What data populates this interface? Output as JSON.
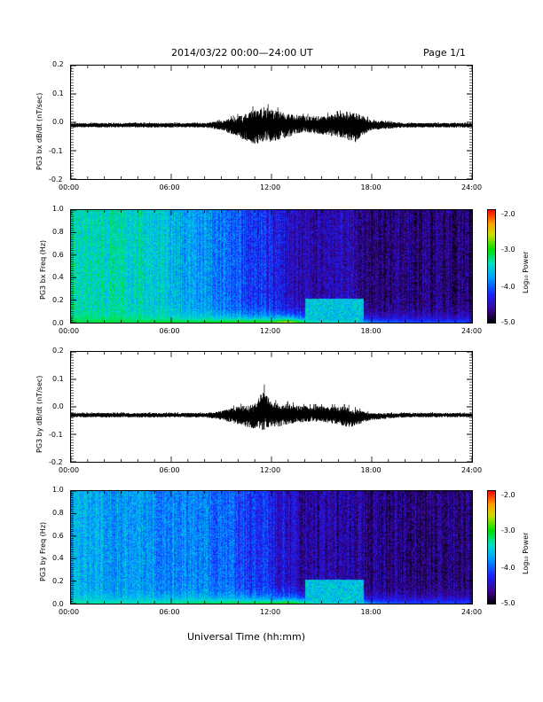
{
  "header": {
    "title": "2014/03/22   00:00—24:00 UT",
    "page": "Page 1/1"
  },
  "xaxis_title": "Universal Time (hh:mm)",
  "colorbar": {
    "label": "Log₁₀ Power",
    "ticks": [
      "-2.0",
      "-3.0",
      "-4.0",
      "-5.0"
    ]
  },
  "chart_data": [
    {
      "type": "line",
      "ylabel": "PG3 bx dB/dt (nT/sec)",
      "xlim": [
        "00:00",
        "24:00"
      ],
      "ylim": [
        -0.2,
        0.2
      ],
      "xticks": [
        "00:00",
        "06:00",
        "12:00",
        "18:00",
        "24:00"
      ],
      "yticks": [
        "0.2",
        "0.1",
        "0.0",
        "-0.1",
        "-0.2"
      ],
      "series": [
        {
          "x": [
            0,
            2,
            4,
            6,
            8,
            9,
            10,
            11,
            11.5,
            12,
            12.5,
            13,
            14,
            15,
            16,
            16.5,
            17,
            17.5,
            18,
            20,
            22,
            24
          ],
          "y_min": [
            -0.02,
            -0.02,
            -0.02,
            -0.02,
            -0.02,
            -0.03,
            -0.06,
            -0.09,
            -0.08,
            -0.08,
            -0.07,
            -0.06,
            -0.04,
            -0.05,
            -0.06,
            -0.07,
            -0.08,
            -0.05,
            -0.03,
            -0.02,
            -0.02,
            -0.02
          ],
          "y_max": [
            0.0,
            0.0,
            0.0,
            0.0,
            0.0,
            0.01,
            0.03,
            0.06,
            0.07,
            0.06,
            0.05,
            0.04,
            0.03,
            0.03,
            0.04,
            0.05,
            0.05,
            0.03,
            0.01,
            0.0,
            0.0,
            0.0
          ]
        }
      ]
    },
    {
      "type": "heatmap",
      "ylabel": "PG3 bx Freq (Hz)",
      "xlim": [
        "00:00",
        "24:00"
      ],
      "ylim": [
        0.0,
        1.0
      ],
      "zlim": [
        -5.0,
        -2.0
      ],
      "xticks": [
        "00:00",
        "06:00",
        "12:00",
        "18:00",
        "24:00"
      ],
      "yticks": [
        "1.0",
        "0.8",
        "0.6",
        "0.4",
        "0.2",
        "0.0"
      ],
      "hours": [
        0,
        4,
        8,
        10,
        12,
        13,
        14,
        15,
        16,
        17,
        18,
        20,
        24
      ],
      "background_log_power": [
        -3.4,
        -3.5,
        -3.8,
        -4.1,
        -4.3,
        -4.5,
        -4.6,
        -4.6,
        -4.5,
        -4.6,
        -4.7,
        -4.7,
        -4.7
      ],
      "low_freq_log_power": [
        -3.1,
        -3.1,
        -3.0,
        -2.8,
        -2.7,
        -2.3,
        -3.0,
        -3.3,
        -3.2,
        -3.4,
        -3.8,
        -4.0,
        -4.0
      ]
    },
    {
      "type": "line",
      "ylabel": "PG3 by dB/dt (nT/sec)",
      "xlim": [
        "00:00",
        "24:00"
      ],
      "ylim": [
        -0.2,
        0.2
      ],
      "xticks": [
        "00:00",
        "06:00",
        "12:00",
        "18:00",
        "24:00"
      ],
      "yticks": [
        "0.2",
        "0.1",
        "0.0",
        "-0.1",
        "-0.2"
      ],
      "series": [
        {
          "x": [
            0,
            2,
            4,
            6,
            8,
            9,
            10,
            11,
            11.5,
            12,
            12.5,
            13,
            14,
            15,
            16,
            16.5,
            17,
            17.5,
            18,
            20,
            22,
            24
          ],
          "y_min": [
            -0.04,
            -0.04,
            -0.04,
            -0.04,
            -0.04,
            -0.05,
            -0.07,
            -0.09,
            -0.1,
            -0.08,
            -0.08,
            -0.07,
            -0.06,
            -0.06,
            -0.07,
            -0.08,
            -0.08,
            -0.06,
            -0.05,
            -0.04,
            -0.04,
            -0.04
          ],
          "y_max": [
            -0.02,
            -0.02,
            -0.02,
            -0.02,
            -0.02,
            -0.01,
            0.01,
            0.02,
            0.09,
            0.03,
            0.02,
            0.02,
            0.01,
            0.01,
            0.01,
            0.01,
            0.0,
            -0.01,
            -0.02,
            -0.02,
            -0.02,
            -0.02
          ]
        }
      ]
    },
    {
      "type": "heatmap",
      "ylabel": "PG3 by Freq (Hz)",
      "xlim": [
        "00:00",
        "24:00"
      ],
      "ylim": [
        0.0,
        1.0
      ],
      "zlim": [
        -5.0,
        -2.0
      ],
      "xticks": [
        "00:00",
        "06:00",
        "12:00",
        "18:00",
        "24:00"
      ],
      "yticks": [
        "1.0",
        "0.8",
        "0.6",
        "0.4",
        "0.2",
        "0.0"
      ],
      "hours": [
        0,
        4,
        8,
        10,
        12,
        13,
        14,
        15,
        16,
        17,
        18,
        20,
        24
      ],
      "background_log_power": [
        -3.7,
        -3.8,
        -3.9,
        -4.1,
        -4.3,
        -4.5,
        -4.6,
        -4.6,
        -4.6,
        -4.6,
        -4.7,
        -4.7,
        -4.7
      ],
      "low_freq_log_power": [
        -3.3,
        -3.3,
        -3.1,
        -3.0,
        -2.9,
        -2.7,
        -3.0,
        -3.3,
        -3.2,
        -3.4,
        -3.8,
        -4.0,
        -4.0
      ]
    }
  ]
}
